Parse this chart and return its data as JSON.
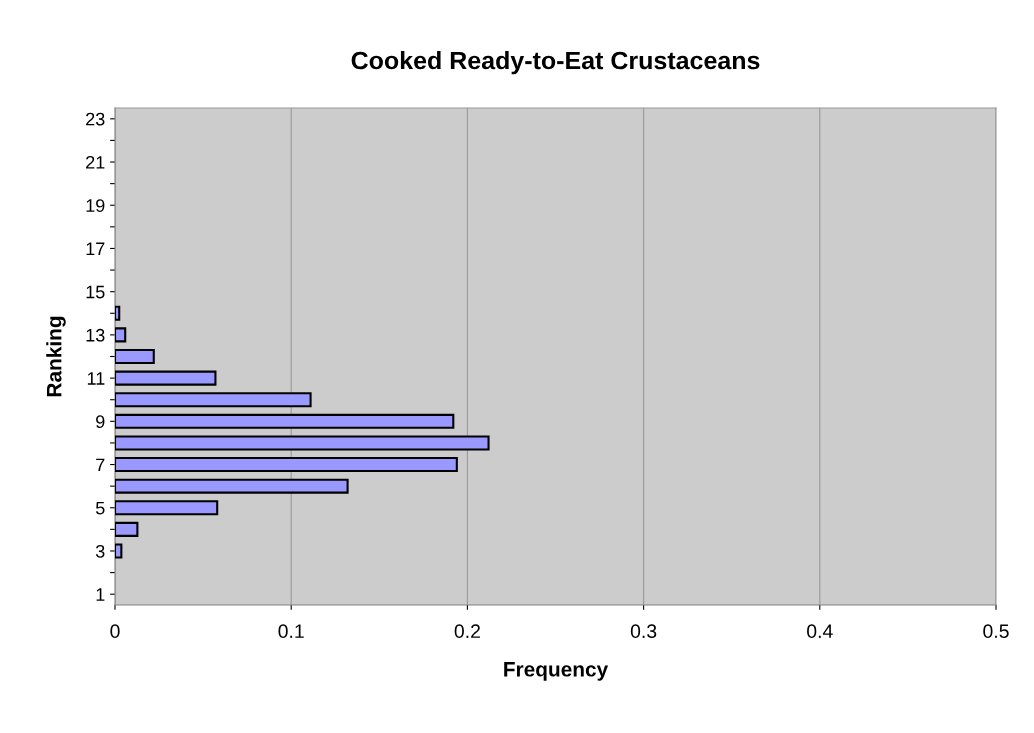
{
  "chart_data": {
    "type": "bar",
    "orientation": "horizontal",
    "title": "Cooked Ready-to-Eat Crustaceans",
    "xlabel": "Frequency",
    "ylabel": "Ranking",
    "categories": [
      "23",
      null,
      "21",
      null,
      "19",
      null,
      "17",
      null,
      "15",
      null,
      "13",
      null,
      "11",
      null,
      "9",
      null,
      "7",
      null,
      "5",
      null,
      "3",
      null,
      "1"
    ],
    "values": [
      null,
      null,
      null,
      null,
      null,
      null,
      null,
      null,
      null,
      0.0024,
      0.0058,
      0.022,
      0.057,
      0.111,
      0.192,
      0.212,
      0.194,
      0.132,
      0.058,
      0.0127,
      0.0036,
      null,
      null
    ],
    "color": "#9999ff",
    "xlim": [
      0,
      0.5
    ],
    "xticks": [
      0,
      0.1,
      0.2,
      0.3,
      0.4,
      0.5
    ],
    "grid": "x"
  }
}
